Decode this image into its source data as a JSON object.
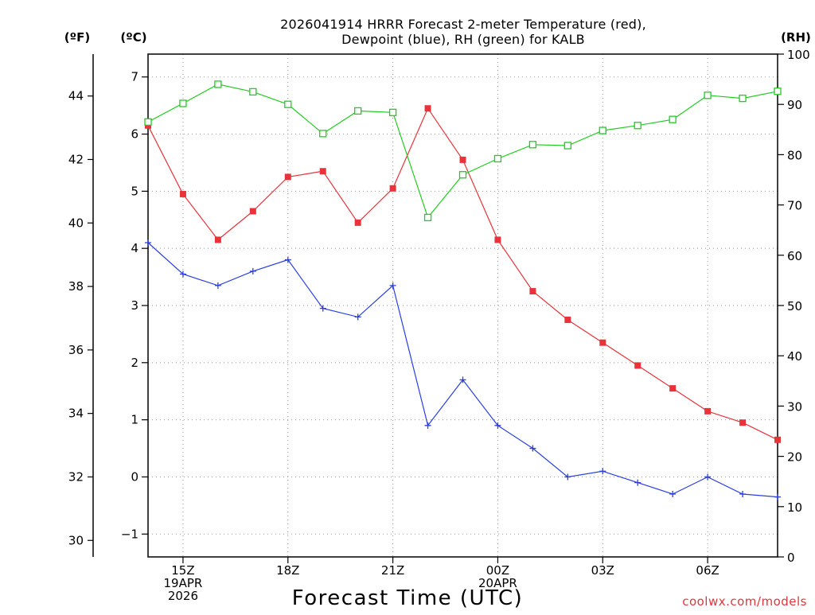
{
  "chart_data": {
    "type": "line",
    "title_lines": [
      "2026041914 HRRR Forecast 2-meter Temperature (red),",
      "Dewpoint (blue), RH (green) for KALB"
    ],
    "xlabel": "Forecast Time (UTC)",
    "credit": "coolwx.com/models",
    "units": {
      "fahrenheit": "(ºF)",
      "celsius": "(ºC)",
      "rh": "(RH)"
    },
    "x_hours": [
      14,
      15,
      16,
      17,
      18,
      19,
      20,
      21,
      22,
      23,
      24,
      25,
      26,
      27,
      28,
      29,
      30,
      31,
      32
    ],
    "xlim": [
      14,
      32
    ],
    "x_ticks": [
      {
        "hour": 15,
        "lines": [
          "15Z",
          "19APR",
          "2026"
        ]
      },
      {
        "hour": 18,
        "lines": [
          "18Z"
        ]
      },
      {
        "hour": 21,
        "lines": [
          "21Z"
        ]
      },
      {
        "hour": 24,
        "lines": [
          "00Z",
          "20APR"
        ]
      },
      {
        "hour": 27,
        "lines": [
          "03Z"
        ]
      },
      {
        "hour": 30,
        "lines": [
          "06Z"
        ]
      }
    ],
    "celsius_axis": {
      "ylim": [
        -1.4,
        7.4
      ],
      "ticks": [
        -1,
        0,
        1,
        2,
        3,
        4,
        5,
        6,
        7
      ],
      "labels": [
        "−1",
        "0",
        "1",
        "2",
        "3",
        "4",
        "5",
        "6",
        "7"
      ]
    },
    "fahrenheit_axis": {
      "ticks": [
        30,
        32,
        34,
        36,
        38,
        40,
        42,
        44
      ],
      "labels": [
        "30",
        "32",
        "34",
        "36",
        "38",
        "40",
        "42",
        "44"
      ]
    },
    "rh_axis": {
      "ylim": [
        0,
        100
      ],
      "ticks": [
        0,
        10,
        20,
        30,
        40,
        50,
        60,
        70,
        80,
        90,
        100
      ],
      "labels": [
        "0",
        "10",
        "20",
        "30",
        "40",
        "50",
        "60",
        "70",
        "80",
        "90",
        "100"
      ]
    },
    "series": [
      {
        "name": "2-meter Temperature",
        "axis": "celsius",
        "color": "#e8333b",
        "marker": "filled-square",
        "values": [
          6.15,
          4.95,
          4.15,
          4.65,
          5.25,
          5.35,
          4.45,
          5.05,
          6.45,
          5.55,
          4.15,
          3.25,
          2.75,
          2.35,
          1.95,
          1.55,
          1.15,
          0.95,
          0.65
        ]
      },
      {
        "name": "Dewpoint",
        "axis": "celsius",
        "color": "#2b3fe0",
        "marker": "plus",
        "values": [
          4.1,
          3.55,
          3.35,
          3.6,
          3.8,
          2.95,
          2.8,
          3.35,
          0.9,
          1.7,
          0.9,
          0.5,
          0.0,
          0.1,
          -0.1,
          -0.3,
          0.0,
          -0.3,
          -0.35
        ]
      },
      {
        "name": "RH",
        "axis": "rh",
        "color": "#22cc22",
        "marker": "open-square",
        "values": [
          86.5,
          90.2,
          94.0,
          92.5,
          90.0,
          84.2,
          88.7,
          88.4,
          67.5,
          76.0,
          79.2,
          82.0,
          81.8,
          84.8,
          85.8,
          87.0,
          91.8,
          91.2,
          92.6
        ]
      }
    ]
  }
}
